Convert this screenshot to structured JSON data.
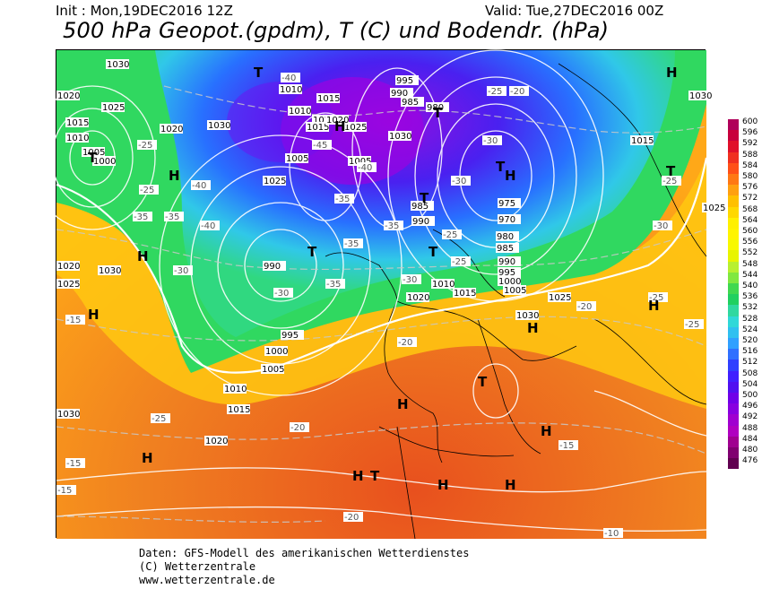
{
  "header": {
    "init": "Init : Mon,19DEC2016 12Z",
    "valid": "Valid: Tue,27DEC2016 00Z",
    "title": "500 hPa Geopot.(gpdm), T (C) und Bodendr. (hPa)"
  },
  "legend": {
    "values": [
      "600",
      "596",
      "592",
      "588",
      "584",
      "580",
      "576",
      "572",
      "568",
      "564",
      "560",
      "556",
      "552",
      "548",
      "544",
      "540",
      "536",
      "532",
      "528",
      "524",
      "520",
      "516",
      "512",
      "508",
      "504",
      "500",
      "496",
      "492",
      "488",
      "484",
      "480",
      "476"
    ],
    "colors": [
      "#b0005a",
      "#c8003c",
      "#e0102a",
      "#f03020",
      "#ff5018",
      "#ff7814",
      "#ffa010",
      "#ffc000",
      "#ffd800",
      "#fff000",
      "#fff400",
      "#f8f800",
      "#e8f400",
      "#b8f030",
      "#80e840",
      "#40d850",
      "#20d060",
      "#30d8a0",
      "#30d8d8",
      "#30c0f0",
      "#30a0ff",
      "#3070ff",
      "#3040ff",
      "#4020ff",
      "#5010f0",
      "#7000e8",
      "#8800e0",
      "#a000d0",
      "#b000c0",
      "#a00090",
      "#800070",
      "#600050"
    ]
  },
  "map": {
    "pressure_labels": [
      "1030",
      "1020",
      "1015",
      "1010",
      "1005",
      "1025",
      "1020",
      "1010",
      "1015",
      "1020",
      "1025",
      "1030",
      "1005",
      "1000",
      "995",
      "990",
      "985",
      "980",
      "1005",
      "1010",
      "1015",
      "1020",
      "1025",
      "1030",
      "990",
      "995",
      "1000",
      "1005",
      "1010",
      "1015",
      "1020",
      "985",
      "990",
      "975",
      "970",
      "980",
      "985",
      "990",
      "995",
      "1000",
      "1005",
      "1010",
      "1015",
      "1020",
      "1025",
      "1030",
      "1020",
      "1030",
      "1025",
      "1030",
      "1015",
      "1025",
      "1030"
    ],
    "temp_labels": [
      "-25",
      "-25",
      "-40",
      "-45",
      "-40",
      "-35",
      "-40",
      "-35",
      "-40",
      "-35",
      "-30",
      "-35",
      "-35",
      "-30",
      "-30",
      "-25",
      "-20",
      "-25",
      "-30",
      "-25",
      "-25",
      "-20",
      "-15",
      "-15",
      "-20",
      "-15",
      "-10",
      "-20",
      "-25",
      "-30",
      "-35",
      "-30",
      "-25",
      "-25",
      "-20",
      "-15"
    ],
    "highs": [
      "H",
      "H",
      "H",
      "H",
      "H",
      "H",
      "H",
      "H",
      "H",
      "H",
      "H",
      "H",
      "H",
      "H"
    ],
    "lows": [
      "T",
      "T",
      "T",
      "T",
      "T",
      "T",
      "T",
      "T",
      "T",
      "T"
    ]
  },
  "footer": {
    "line1": "Daten: GFS-Modell des amerikanischen Wetterdienstes",
    "line2": "(C) Wetterzentrale",
    "line3": "www.wetterzentrale.de"
  }
}
